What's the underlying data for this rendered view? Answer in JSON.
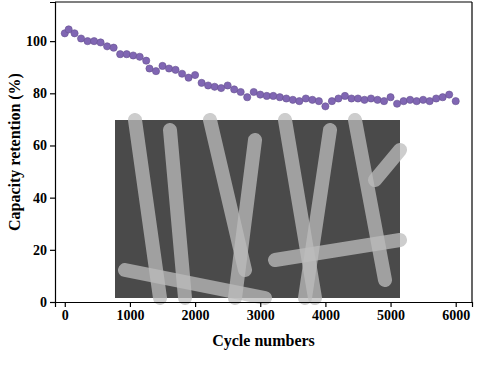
{
  "chart_data": {
    "type": "scatter",
    "x_label": "Cycle numbers",
    "y_label": "Capacity retention (%)",
    "xlim": [
      -150,
      6250
    ],
    "xticks": [
      0,
      1000,
      2000,
      3000,
      4000,
      5000,
      6000
    ],
    "ylim": [
      0,
      115
    ],
    "yticks": [
      0,
      20,
      40,
      60,
      80,
      100
    ],
    "grid": false,
    "series": [
      {
        "color": "#8066b3",
        "marker": "circle",
        "x": [
          0,
          60,
          150,
          250,
          350,
          450,
          550,
          650,
          750,
          850,
          950,
          1050,
          1150,
          1250,
          1300,
          1400,
          1500,
          1600,
          1700,
          1800,
          1900,
          2000,
          2100,
          2200,
          2300,
          2400,
          2500,
          2600,
          2700,
          2800,
          2900,
          3000,
          3100,
          3200,
          3300,
          3400,
          3500,
          3600,
          3700,
          3800,
          3900,
          4000,
          4100,
          4200,
          4300,
          4400,
          4500,
          4600,
          4700,
          4800,
          4900,
          5000,
          5100,
          5200,
          5300,
          5400,
          5500,
          5600,
          5700,
          5800,
          5900,
          6000
        ],
        "values": [
          103,
          104.5,
          103,
          101,
          100,
          100,
          99.5,
          98,
          97.5,
          95,
          95,
          94.5,
          94,
          92.5,
          89.5,
          88.5,
          90.5,
          89.5,
          89,
          87.5,
          86,
          87,
          84,
          83,
          82.5,
          82,
          83,
          81.5,
          80.5,
          78.5,
          80.5,
          79.5,
          79,
          79,
          78.5,
          78,
          77.5,
          77,
          78,
          77.5,
          77,
          75,
          77,
          78,
          79,
          78,
          78,
          77.5,
          78,
          77.5,
          77,
          78.5,
          76,
          77,
          77.5,
          77,
          77.5,
          77,
          78,
          78.5,
          79.5,
          77
        ]
      }
    ]
  }
}
